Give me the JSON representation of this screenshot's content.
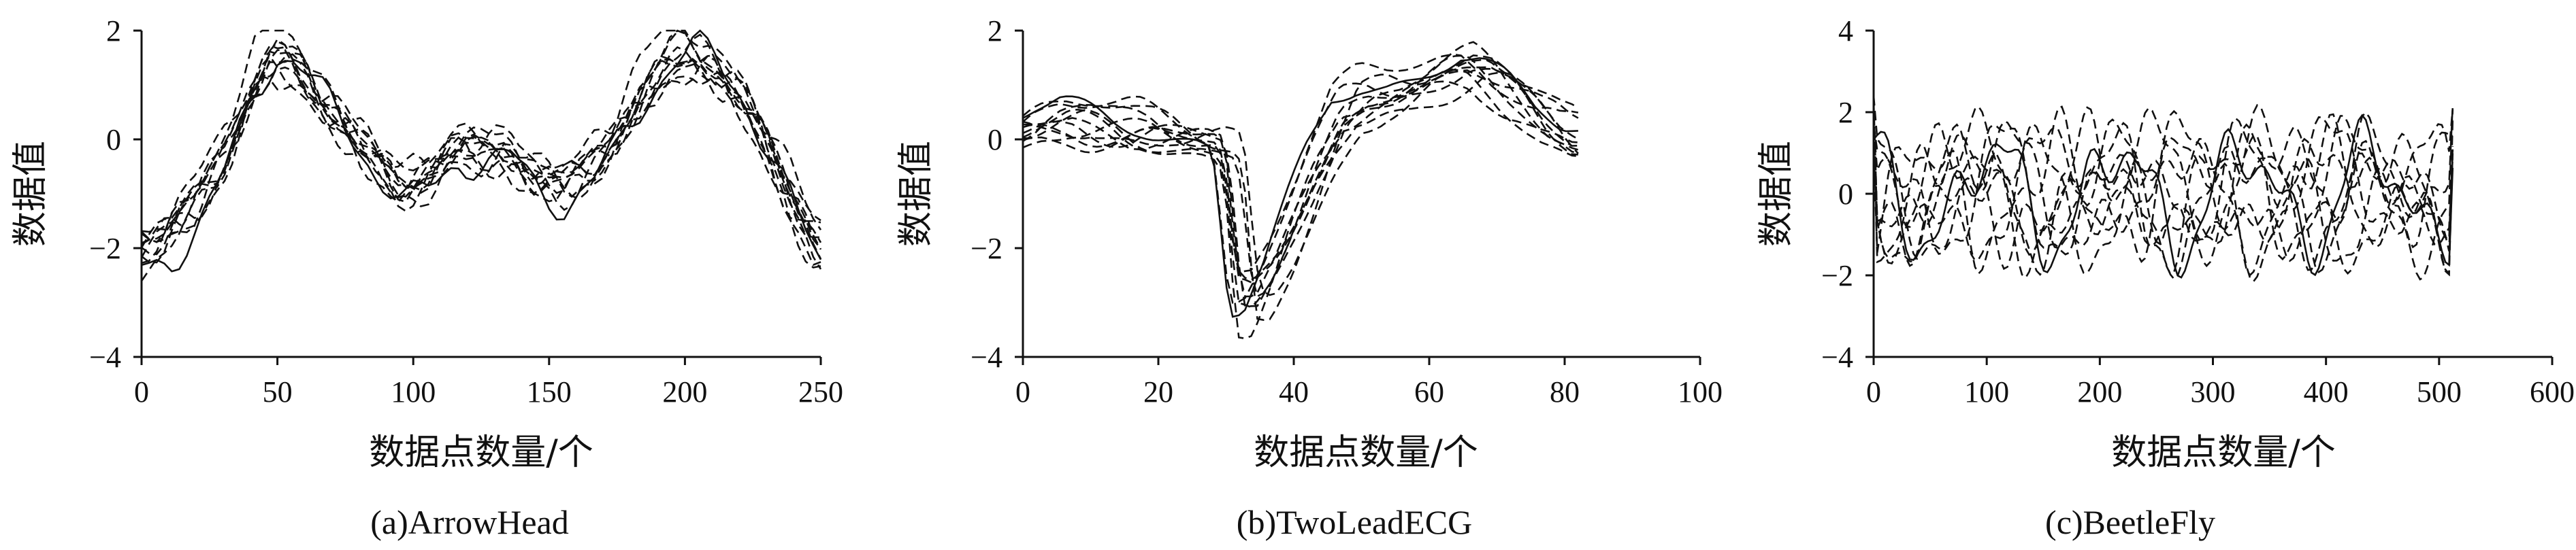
{
  "chart_data": [
    {
      "type": "line",
      "caption": "(a)ArrowHead",
      "xlabel": "数据点数量/个",
      "ylabel": "数据值",
      "xlim": [
        0,
        250
      ],
      "ylim": [
        -4,
        2
      ],
      "xticks": [
        0,
        50,
        100,
        150,
        200,
        250
      ],
      "yticks": [
        -4,
        -2,
        0,
        2
      ],
      "grid": false,
      "num_series": 12,
      "series_template": [
        [
          0,
          -2.1
        ],
        [
          10,
          -1.9
        ],
        [
          20,
          -1.3
        ],
        [
          30,
          -0.4
        ],
        [
          40,
          0.9
        ],
        [
          48,
          1.6
        ],
        [
          55,
          1.5
        ],
        [
          65,
          0.9
        ],
        [
          75,
          0.3
        ],
        [
          85,
          -0.4
        ],
        [
          95,
          -1.0
        ],
        [
          105,
          -0.7
        ],
        [
          115,
          -0.2
        ],
        [
          125,
          -0.3
        ],
        [
          135,
          -0.2
        ],
        [
          145,
          -0.7
        ],
        [
          155,
          -1.0
        ],
        [
          165,
          -0.6
        ],
        [
          175,
          0.1
        ],
        [
          185,
          0.9
        ],
        [
          195,
          1.5
        ],
        [
          203,
          1.7
        ],
        [
          210,
          1.5
        ],
        [
          220,
          0.9
        ],
        [
          230,
          -0.1
        ],
        [
          240,
          -1.2
        ],
        [
          250,
          -2.1
        ]
      ]
    },
    {
      "type": "line",
      "caption": "(b)TwoLeadECG",
      "xlabel": "数据点数量/个",
      "ylabel": "数据值",
      "xlim": [
        0,
        100
      ],
      "ylim": [
        -4,
        2
      ],
      "xticks": [
        0,
        20,
        40,
        60,
        80,
        100
      ],
      "yticks": [
        -4,
        -2,
        0,
        2
      ],
      "grid": false,
      "num_series": 12,
      "series_template": [
        [
          0,
          0.1
        ],
        [
          4,
          0.3
        ],
        [
          8,
          0.4
        ],
        [
          12,
          0.3
        ],
        [
          16,
          0.2
        ],
        [
          20,
          0.2
        ],
        [
          24,
          0.1
        ],
        [
          28,
          0.0
        ],
        [
          30,
          -0.1
        ],
        [
          31,
          -0.6
        ],
        [
          32,
          -2.0
        ],
        [
          33,
          -3.0
        ],
        [
          35,
          -3.0
        ],
        [
          38,
          -2.3
        ],
        [
          41,
          -1.4
        ],
        [
          44,
          -0.5
        ],
        [
          48,
          0.5
        ],
        [
          52,
          0.8
        ],
        [
          56,
          0.9
        ],
        [
          60,
          1.1
        ],
        [
          64,
          1.3
        ],
        [
          67,
          1.4
        ],
        [
          70,
          1.2
        ],
        [
          74,
          0.8
        ],
        [
          78,
          0.3
        ],
        [
          82,
          0.0
        ]
      ]
    },
    {
      "type": "line",
      "caption": "(c)BeetleFly",
      "xlabel": "数据点数量/个",
      "ylabel": "数据值",
      "xlim": [
        0,
        600
      ],
      "ylim": [
        -4,
        4
      ],
      "xticks": [
        0,
        100,
        200,
        300,
        400,
        500,
        600
      ],
      "yticks": [
        -4,
        -2,
        0,
        2,
        4
      ],
      "grid": false,
      "num_series": 10,
      "series_length": 512,
      "series_amplitude": 2.2
    }
  ]
}
